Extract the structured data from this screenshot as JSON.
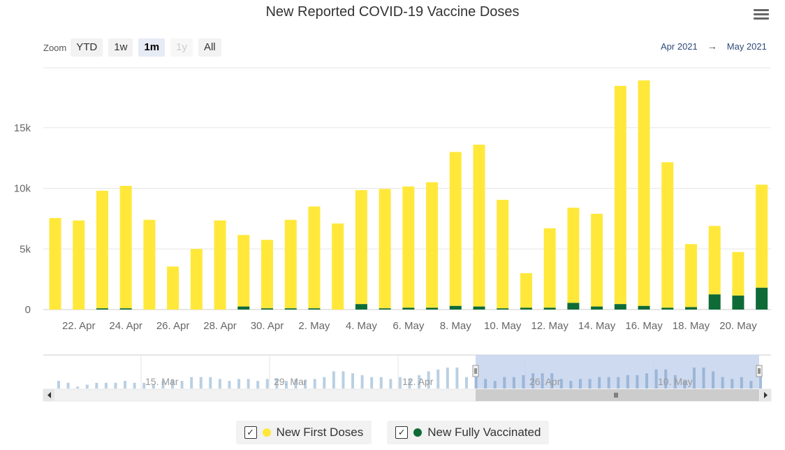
{
  "title": "New Reported COVID-19 Vaccine Doses",
  "colors": {
    "first_doses": "#ffe83a",
    "fully_vaccinated": "#0e6b37",
    "navigator_bar": "#a9c4dc",
    "navigator_mask": "#c5d4ec"
  },
  "toolbar": {
    "zoom_label": "Zoom",
    "buttons": [
      {
        "label": "YTD",
        "state": "normal"
      },
      {
        "label": "1w",
        "state": "normal"
      },
      {
        "label": "1m",
        "state": "active"
      },
      {
        "label": "1y",
        "state": "disabled"
      },
      {
        "label": "All",
        "state": "normal"
      }
    ]
  },
  "range": {
    "from": "Apr 2021",
    "arrow": "→",
    "to": "May 2021"
  },
  "legend": {
    "items": [
      {
        "label": "New First Doses",
        "check": "✓"
      },
      {
        "label": "New Fully Vaccinated",
        "check": "✓"
      }
    ]
  },
  "chart_data": {
    "type": "bar",
    "stacked": true,
    "title": "New Reported COVID-19 Vaccine Doses",
    "xlabel": "",
    "ylabel": "",
    "ylim": [
      0,
      20000
    ],
    "yticks": [
      0,
      5000,
      10000,
      15000
    ],
    "ytick_labels": [
      "0",
      "5k",
      "10k",
      "15k"
    ],
    "categories": [
      "21 Apr",
      "22 Apr",
      "23 Apr",
      "24 Apr",
      "25 Apr",
      "26 Apr",
      "27 Apr",
      "28 Apr",
      "29 Apr",
      "30 Apr",
      "1 May",
      "2 May",
      "3 May",
      "4 May",
      "5 May",
      "6 May",
      "7 May",
      "8 May",
      "9 May",
      "10 May",
      "11 May",
      "12 May",
      "13 May",
      "14 May",
      "15 May",
      "16 May",
      "17 May",
      "18 May",
      "19 May",
      "20 May",
      "21 May"
    ],
    "x_tick_labels": [
      {
        "index": 1,
        "label": "22. Apr"
      },
      {
        "index": 3,
        "label": "24. Apr"
      },
      {
        "index": 5,
        "label": "26. Apr"
      },
      {
        "index": 7,
        "label": "28. Apr"
      },
      {
        "index": 9,
        "label": "30. Apr"
      },
      {
        "index": 11,
        "label": "2. May"
      },
      {
        "index": 13,
        "label": "4. May"
      },
      {
        "index": 15,
        "label": "6. May"
      },
      {
        "index": 17,
        "label": "8. May"
      },
      {
        "index": 19,
        "label": "10. May"
      },
      {
        "index": 21,
        "label": "12. May"
      },
      {
        "index": 23,
        "label": "14. May"
      },
      {
        "index": 25,
        "label": "16. May"
      },
      {
        "index": 27,
        "label": "18. May"
      },
      {
        "index": 29,
        "label": "20. May"
      }
    ],
    "series": [
      {
        "name": "New Fully Vaccinated",
        "values": [
          0,
          0,
          100,
          100,
          0,
          0,
          0,
          0,
          250,
          100,
          100,
          100,
          0,
          450,
          100,
          150,
          150,
          300,
          250,
          100,
          150,
          150,
          550,
          250,
          450,
          300,
          150,
          200,
          1250,
          1150,
          1800
        ]
      },
      {
        "name": "New First Doses",
        "values": [
          7550,
          7350,
          9700,
          10100,
          7400,
          3550,
          5000,
          7350,
          5900,
          5650,
          7300,
          8400,
          7100,
          9400,
          9850,
          10000,
          10350,
          12700,
          13350,
          8950,
          2850,
          6550,
          7850,
          7650,
          18000,
          18600,
          12000,
          5200,
          5650,
          3600,
          8500
        ]
      }
    ],
    "navigator": {
      "tick_labels": [
        "15. Mar",
        "29. Mar",
        "12. Apr",
        "26. Apr",
        "10. May"
      ],
      "values": [
        4,
        3,
        1,
        2,
        3,
        3,
        3,
        4,
        3,
        3,
        2,
        4,
        5,
        4,
        6,
        6,
        6,
        5,
        4,
        5,
        5,
        4,
        5,
        5,
        4,
        5,
        4,
        5,
        6,
        9,
        9,
        8,
        7,
        6,
        6,
        5,
        6,
        5,
        7,
        9,
        10,
        11,
        11,
        6,
        6,
        5,
        4,
        6,
        6,
        7,
        8,
        8,
        8,
        5,
        4,
        5,
        5,
        6,
        6,
        6,
        7,
        7,
        8,
        10,
        10,
        7,
        4,
        11,
        11,
        9,
        6,
        5,
        6,
        4,
        7
      ]
    }
  }
}
